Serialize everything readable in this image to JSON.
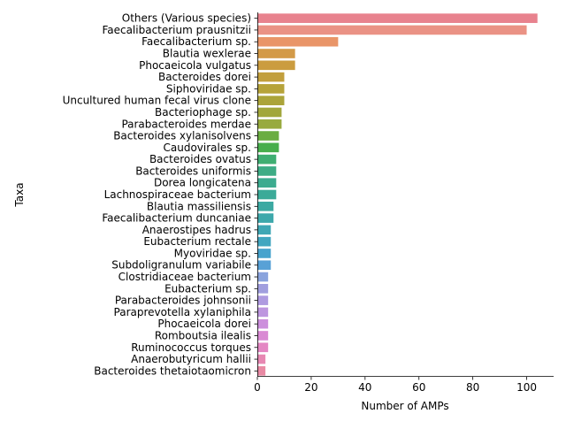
{
  "chart_data": {
    "type": "bar",
    "orientation": "horizontal",
    "xlabel": "Number of AMPs",
    "ylabel": "Taxa",
    "xlim": [
      0,
      110
    ],
    "xticks": [
      0,
      20,
      40,
      60,
      80,
      100
    ],
    "grid": false,
    "legend": "none",
    "categories": [
      "Others (Various species)",
      "Faecalibacterium prausnitzii",
      "Faecalibacterium sp.",
      "Blautia wexlerae",
      "Phocaeicola vulgatus",
      "Bacteroides dorei",
      "Siphoviridae sp.",
      "Uncultured human fecal virus clone",
      "Bacteriophage sp.",
      "Parabacteroides merdae",
      "Bacteroides xylanisolvens",
      "Caudovirales sp.",
      "Bacteroides ovatus",
      "Bacteroides uniformis",
      "Dorea longicatena",
      "Lachnospiraceae bacterium",
      "Blautia massiliensis",
      "Faecalibacterium duncaniae",
      "Anaerostipes hadrus",
      "Eubacterium rectale",
      "Myoviridae sp.",
      "Subdoligranulum variabile",
      "Clostridiaceae bacterium",
      "Eubacterium sp.",
      "Parabacteroides johnsonii",
      "Paraprevotella xylaniphila",
      "Phocaeicola dorei",
      "Romboutsia ilealis",
      "Ruminococcus torques",
      "Anaerobutyricum hallii",
      "Bacteroides thetaiotaomicron"
    ],
    "values": [
      104,
      100,
      30,
      14,
      14,
      10,
      10,
      10,
      9,
      9,
      8,
      8,
      7,
      7,
      7,
      7,
      6,
      6,
      5,
      5,
      5,
      5,
      4,
      4,
      4,
      4,
      4,
      4,
      4,
      3,
      3
    ],
    "colors": [
      "#e8828e",
      "#ea9285",
      "#e99568",
      "#d39a48",
      "#cb9c3f",
      "#c29f3c",
      "#b6a33a",
      "#aba43a",
      "#a2a73c",
      "#98aa3e",
      "#6aad41",
      "#47ae4c",
      "#3fae72",
      "#3dac85",
      "#3cab8f",
      "#3baa98",
      "#3ca9a2",
      "#3da8ab",
      "#3fa7b5",
      "#42a6c0",
      "#47a3cd",
      "#58a1d6",
      "#8aa3dd",
      "#a09ede",
      "#ae9ae0",
      "#bd96df",
      "#cc8fdc",
      "#d98ad3",
      "#e487c3",
      "#e788b3",
      "#e98aa4"
    ]
  }
}
